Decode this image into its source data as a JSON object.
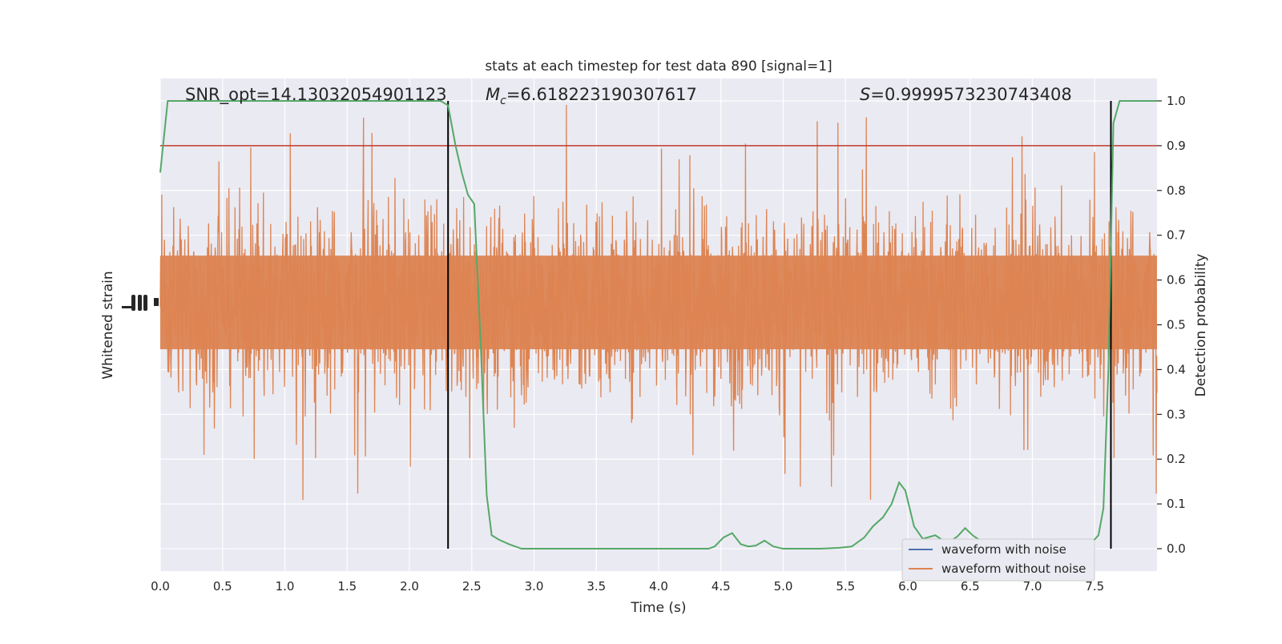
{
  "chart_data": {
    "type": "line",
    "title": "stats at each timestep for test data 890 [signal=1]",
    "xlabel": "Time (s)",
    "ylabel_left": "Whitened strain",
    "ylabel_right": "Detection probability",
    "xlim": [
      0.0,
      8.0
    ],
    "ylim_right": [
      -0.05,
      1.05
    ],
    "grid": true,
    "x_ticks": [
      "0.0",
      "0.5",
      "1.0",
      "1.5",
      "2.0",
      "2.5",
      "3.0",
      "3.5",
      "4.0",
      "4.5",
      "5.0",
      "5.5",
      "6.0",
      "6.5",
      "7.0",
      "7.5"
    ],
    "right_ticks": [
      "0.0",
      "0.1",
      "0.2",
      "0.3",
      "0.4",
      "0.5",
      "0.6",
      "0.7",
      "0.8",
      "0.9",
      "1.0"
    ],
    "annotations": {
      "snr": "SNR_opt=14.13032054901123",
      "mc_symbol": "M",
      "mc_sub": "c",
      "mc_value": "=6.618223190307617",
      "s_symbol": "S",
      "s_value": "=0.9999573230743408"
    },
    "threshold": {
      "value": 0.9,
      "color": "#c0392b"
    },
    "vertical_markers": [
      2.31,
      7.63
    ],
    "strain": {
      "center": 0.55,
      "typical_amplitude": 0.19,
      "max_amplitude": 0.45,
      "color": "#dd8452"
    },
    "probability": {
      "name": "",
      "color": "#55a868",
      "x": [
        0.0,
        0.06,
        0.25,
        0.5,
        1.0,
        1.5,
        2.0,
        2.25,
        2.31,
        2.37,
        2.42,
        2.47,
        2.52,
        2.57,
        2.62,
        2.66,
        2.72,
        2.8,
        2.9,
        3.2,
        3.5,
        3.8,
        4.0,
        4.2,
        4.4,
        4.45,
        4.52,
        4.59,
        4.66,
        4.72,
        4.78,
        4.85,
        4.92,
        5.0,
        5.1,
        5.3,
        5.45,
        5.55,
        5.65,
        5.72,
        5.8,
        5.87,
        5.93,
        5.98,
        6.05,
        6.12,
        6.22,
        6.32,
        6.4,
        6.46,
        6.52,
        6.6,
        6.7,
        6.85,
        7.0,
        7.15,
        7.3,
        7.42,
        7.48,
        7.53,
        7.57,
        7.61,
        7.65,
        7.7,
        7.75,
        7.8,
        8.0
      ],
      "y": [
        0.84,
        1.0,
        1.0,
        1.0,
        1.0,
        1.0,
        1.0,
        1.0,
        0.99,
        0.9,
        0.84,
        0.79,
        0.77,
        0.47,
        0.12,
        0.03,
        0.02,
        0.01,
        0.0,
        0.0,
        0.0,
        0.0,
        0.0,
        0.0,
        0.0,
        0.005,
        0.025,
        0.035,
        0.01,
        0.005,
        0.007,
        0.018,
        0.005,
        0.0,
        0.0,
        0.0,
        0.002,
        0.005,
        0.025,
        0.05,
        0.07,
        0.1,
        0.148,
        0.13,
        0.05,
        0.022,
        0.03,
        0.012,
        0.028,
        0.046,
        0.03,
        0.015,
        0.008,
        0.01,
        0.005,
        0.008,
        0.005,
        0.01,
        0.015,
        0.03,
        0.09,
        0.4,
        0.95,
        1.0,
        1.0,
        1.0,
        1.0
      ]
    },
    "legend": {
      "placement": "lower-right",
      "entries": [
        {
          "name": "waveform with noise",
          "color": "#4c72b0"
        },
        {
          "name": "waveform without noise",
          "color": "#dd8452"
        }
      ]
    }
  }
}
